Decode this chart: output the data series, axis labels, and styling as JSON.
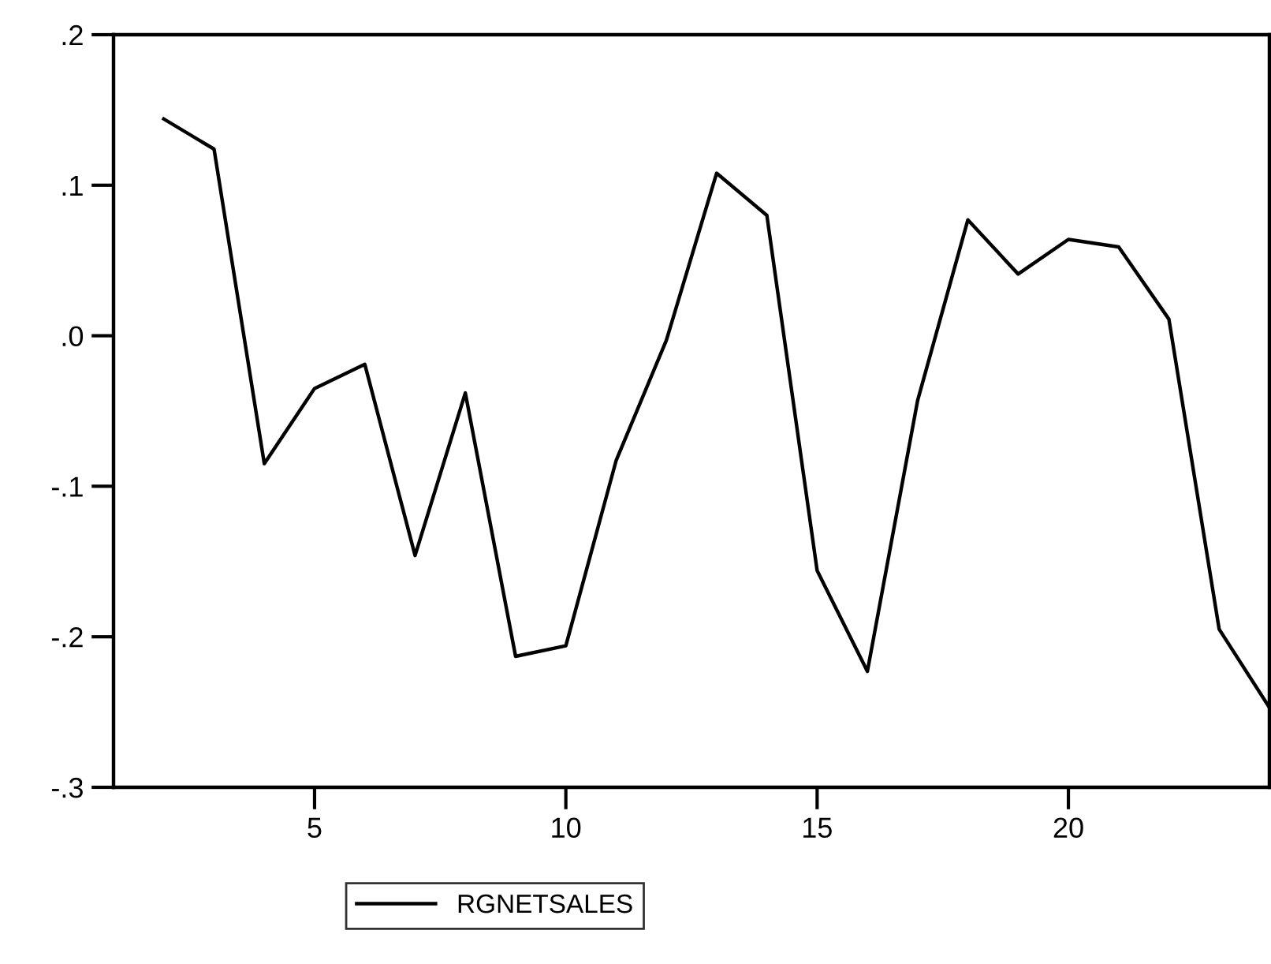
{
  "chart_data": {
    "type": "line",
    "x": [
      2,
      3,
      4,
      5,
      6,
      7,
      8,
      9,
      10,
      11,
      12,
      13,
      14,
      15,
      16,
      17,
      18,
      19,
      20,
      21,
      22,
      23,
      24
    ],
    "series": [
      {
        "name": "RGNETSALES",
        "color": "#000000",
        "values": [
          0.144,
          0.124,
          -0.085,
          -0.035,
          -0.019,
          -0.146,
          -0.038,
          -0.213,
          -0.206,
          -0.083,
          -0.003,
          0.108,
          0.08,
          -0.156,
          -0.223,
          -0.043,
          0.077,
          0.041,
          0.064,
          0.059,
          0.011,
          -0.195,
          -0.247
        ]
      }
    ],
    "xlim": [
      1,
      24
    ],
    "xticks": [
      5,
      10,
      15,
      20
    ],
    "ylim": [
      -0.3,
      0.2
    ],
    "yticks": [
      {
        "value": -0.3,
        "label": "-.3"
      },
      {
        "value": -0.2,
        "label": "-.2"
      },
      {
        "value": -0.1,
        "label": "-.1"
      },
      {
        "value": 0,
        "label": ".0"
      },
      {
        "value": 0.1,
        "label": ".1"
      },
      {
        "value": 0.2,
        "label": ".2"
      }
    ],
    "legend": "bottom",
    "grid": false,
    "line_style": "solid",
    "marker": "none"
  }
}
